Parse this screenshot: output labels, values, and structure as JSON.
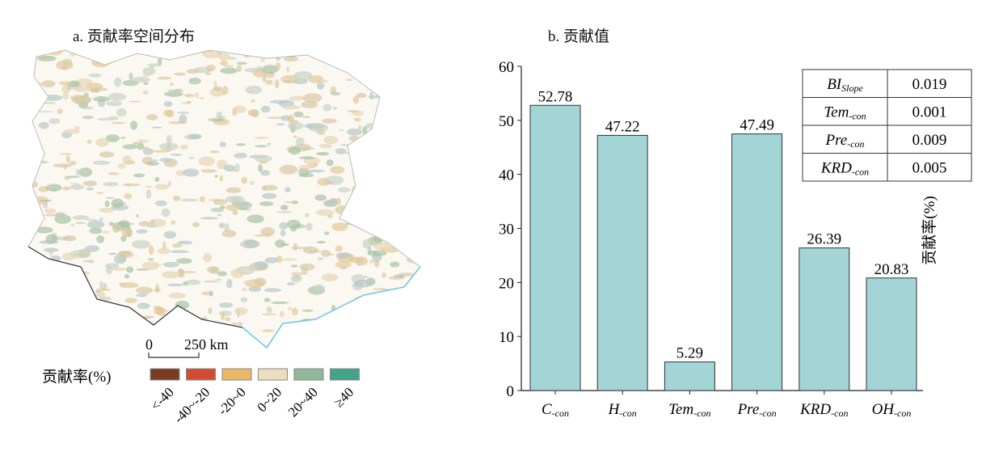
{
  "panel_a": {
    "title": "a. 贡献率空间分布",
    "scalebar": {
      "start": "0",
      "end": "250 km"
    },
    "legend": {
      "title": "贡献率(%)",
      "items": [
        {
          "label": "<-40",
          "color": "#7b3b22"
        },
        {
          "label": "-40~-20",
          "color": "#d24c33"
        },
        {
          "label": "-20~0",
          "color": "#e9b966"
        },
        {
          "label": "0~20",
          "color": "#ecdcc0"
        },
        {
          "label": "20~40",
          "color": "#8fb99a"
        },
        {
          "label": "≥40",
          "color": "#43a38a"
        }
      ]
    }
  },
  "chart_data": {
    "type": "bar",
    "title": "b. 贡献值",
    "ylabel": "贡献率(%)",
    "xlabel": "",
    "ylim": [
      0,
      60
    ],
    "yticks": [
      0,
      10,
      20,
      30,
      40,
      50,
      60
    ],
    "bar_color": "#a3d4d6",
    "categories": [
      {
        "main": "C",
        "sub": "-con"
      },
      {
        "main": "H",
        "sub": "-con"
      },
      {
        "main": "Tem",
        "sub": "-con"
      },
      {
        "main": "Pre",
        "sub": "-con"
      },
      {
        "main": "KRD",
        "sub": "-con"
      },
      {
        "main": "OH",
        "sub": "-con"
      }
    ],
    "values": [
      52.78,
      47.22,
      5.29,
      47.49,
      26.39,
      20.83
    ],
    "data_labels": [
      "52.78",
      "47.22",
      "5.29",
      "47.49",
      "26.39",
      "20.83"
    ],
    "inset_table": [
      {
        "main": "BI",
        "sub": "Slope",
        "value": "0.019"
      },
      {
        "main": "Tem",
        "sub": "-con",
        "value": "0.001"
      },
      {
        "main": "Pre",
        "sub": "-con",
        "value": "0.009"
      },
      {
        "main": "KRD",
        "sub": "-con",
        "value": "0.005"
      }
    ]
  }
}
